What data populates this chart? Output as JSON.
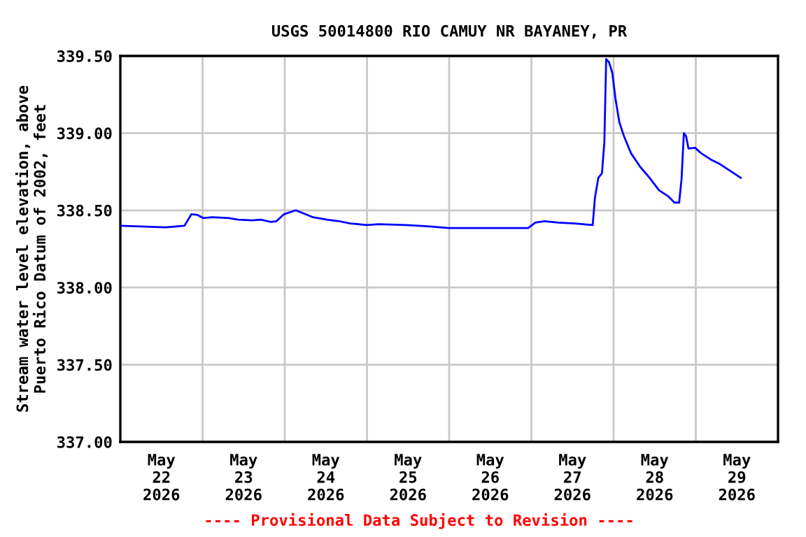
{
  "chart_data": {
    "type": "line",
    "title": "USGS 50014800 RIO CAMUY NR BAYANEY, PR",
    "ylabel": "Stream water level elevation, above\nPuerto Rico Datum of 2002, feet",
    "annotations": [
      "---- Provisional Data Subject to Revision ----"
    ],
    "x": [
      "2026-05-22T00:00",
      "2026-05-22T13:12",
      "2026-05-22T18:43",
      "2026-05-22T20:46",
      "2026-05-22T22:32",
      "2026-05-23T00:10",
      "2026-05-23T02:54",
      "2026-05-23T07:40",
      "2026-05-23T10:24",
      "2026-05-23T14:30",
      "2026-05-23T17:00",
      "2026-05-23T19:57",
      "2026-05-23T21:35",
      "2026-05-23T23:48",
      "2026-05-24T03:12",
      "2026-05-24T05:32",
      "2026-05-24T08:14",
      "2026-05-24T12:20",
      "2026-05-24T15:46",
      "2026-05-24T19:10",
      "2026-05-25T00:00",
      "2026-05-25T03:21",
      "2026-05-25T11:33",
      "2026-05-25T18:23",
      "2026-05-25T23:50",
      "2026-05-26T23:03",
      "2026-05-27T01:06",
      "2026-05-27T03:49",
      "2026-05-27T07:54",
      "2026-05-27T12:42",
      "2026-05-27T17:54",
      "2026-05-27T18:33",
      "2026-05-27T19:32",
      "2026-05-27T20:36",
      "2026-05-27T21:18",
      "2026-05-27T21:50",
      "2026-05-27T22:39",
      "2026-05-27T23:38",
      "2026-05-28T00:34",
      "2026-05-28T01:41",
      "2026-05-28T03:02",
      "2026-05-28T05:05",
      "2026-05-28T07:49",
      "2026-05-28T10:31",
      "2026-05-28T13:16",
      "2026-05-28T16:00",
      "2026-05-28T17:46",
      "2026-05-28T19:08",
      "2026-05-28T19:50",
      "2026-05-28T20:31",
      "2026-05-28T21:10",
      "2026-05-28T21:52",
      "2026-05-28T23:47",
      "2026-05-29T01:33",
      "2026-05-29T04:18",
      "2026-05-29T07:00",
      "2026-05-29T09:45",
      "2026-05-29T13:08"
    ],
    "series": [
      {
        "color": "#0000ff",
        "values": [
          338.4,
          338.39,
          338.4,
          338.475,
          338.47,
          338.45,
          338.455,
          338.45,
          338.44,
          338.435,
          338.44,
          338.425,
          338.43,
          338.475,
          338.5,
          338.48,
          338.455,
          338.44,
          338.43,
          338.415,
          338.405,
          338.41,
          338.405,
          338.395,
          338.385,
          338.385,
          338.42,
          338.43,
          338.42,
          338.415,
          338.405,
          338.58,
          338.71,
          338.74,
          338.94,
          339.48,
          339.46,
          339.39,
          339.22,
          339.07,
          338.98,
          338.87,
          338.78,
          338.71,
          338.63,
          338.59,
          338.55,
          338.55,
          338.7,
          339.0,
          338.98,
          338.9,
          338.905,
          338.87,
          338.83,
          338.8,
          338.76,
          338.71
        ]
      }
    ],
    "xlim": [
      "2026-05-22T00:00",
      "2026-05-30T00:00"
    ],
    "xticks": [
      {
        "value": "2026-05-22T12:00",
        "label": "May\n22\n2026"
      },
      {
        "value": "2026-05-23T12:00",
        "label": "May\n23\n2026"
      },
      {
        "value": "2026-05-24T12:00",
        "label": "May\n24\n2026"
      },
      {
        "value": "2026-05-25T12:00",
        "label": "May\n25\n2026"
      },
      {
        "value": "2026-05-26T12:00",
        "label": "May\n26\n2026"
      },
      {
        "value": "2026-05-27T12:00",
        "label": "May\n27\n2026"
      },
      {
        "value": "2026-05-28T12:00",
        "label": "May\n28\n2026"
      },
      {
        "value": "2026-05-29T12:00",
        "label": "May\n29\n2026"
      },
      {
        "value": "2026-05-23T00:00",
        "label": null
      },
      {
        "value": "2026-05-24T00:00",
        "label": null
      },
      {
        "value": "2026-05-25T00:00",
        "label": null
      },
      {
        "value": "2026-05-26T00:00",
        "label": null
      },
      {
        "value": "2026-05-27T00:00",
        "label": null
      },
      {
        "value": "2026-05-28T00:00",
        "label": null
      },
      {
        "value": "2026-05-29T00:00",
        "label": null
      }
    ],
    "ylim": [
      337.0,
      339.5
    ],
    "yticks": [
      {
        "value": 337.0,
        "label": "337.00"
      },
      {
        "value": 337.5,
        "label": "337.50"
      },
      {
        "value": 338.0,
        "label": "338.00"
      },
      {
        "value": 338.5,
        "label": "338.50"
      },
      {
        "value": 339.0,
        "label": "339.00"
      },
      {
        "value": 339.5,
        "label": "339.50"
      }
    ],
    "grid": true,
    "legend": false,
    "marker": "none",
    "line_style": "solid"
  }
}
